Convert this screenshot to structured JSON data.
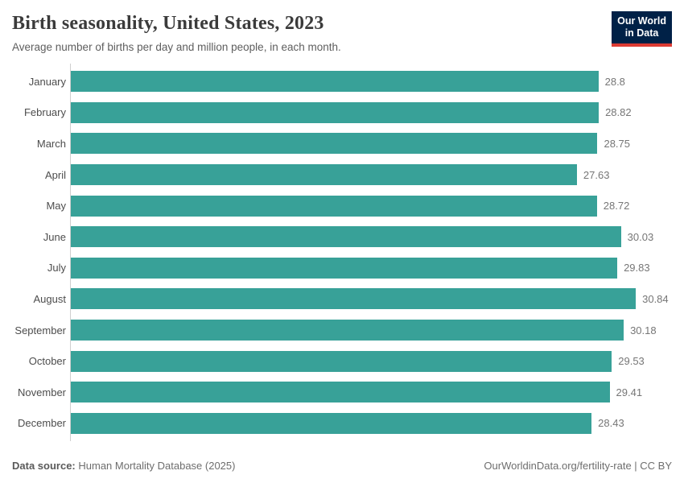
{
  "header": {
    "title": "Birth seasonality, United States, 2023",
    "subtitle": "Average number of births per day and million people, in each month.",
    "logo_line1": "Our World",
    "logo_line2": "in Data",
    "logo_bg_color": "#002147",
    "logo_accent_color": "#dc3b33"
  },
  "chart_data": {
    "type": "bar",
    "orientation": "horizontal",
    "title": "Birth seasonality, United States, 2023",
    "subtitle": "Average number of births per day and million people, in each month.",
    "xlabel": "",
    "ylabel": "",
    "categories": [
      "January",
      "February",
      "March",
      "April",
      "May",
      "June",
      "July",
      "August",
      "September",
      "October",
      "November",
      "December"
    ],
    "values": [
      28.8,
      28.82,
      28.75,
      27.63,
      28.72,
      30.03,
      29.83,
      30.84,
      30.18,
      29.53,
      29.41,
      28.43
    ],
    "value_labels": [
      "28.8",
      "28.82",
      "28.75",
      "27.63",
      "28.72",
      "30.03",
      "29.83",
      "30.84",
      "30.18",
      "29.53",
      "29.41",
      "28.43"
    ],
    "xlim": [
      0,
      30.84
    ],
    "grid": false,
    "legend": "none",
    "bar_color": "#38a198"
  },
  "footer": {
    "source_label": "Data source:",
    "source_text": "Human Mortality Database (2025)",
    "link_text": "OurWorldinData.org/fertility-rate | CC BY"
  }
}
